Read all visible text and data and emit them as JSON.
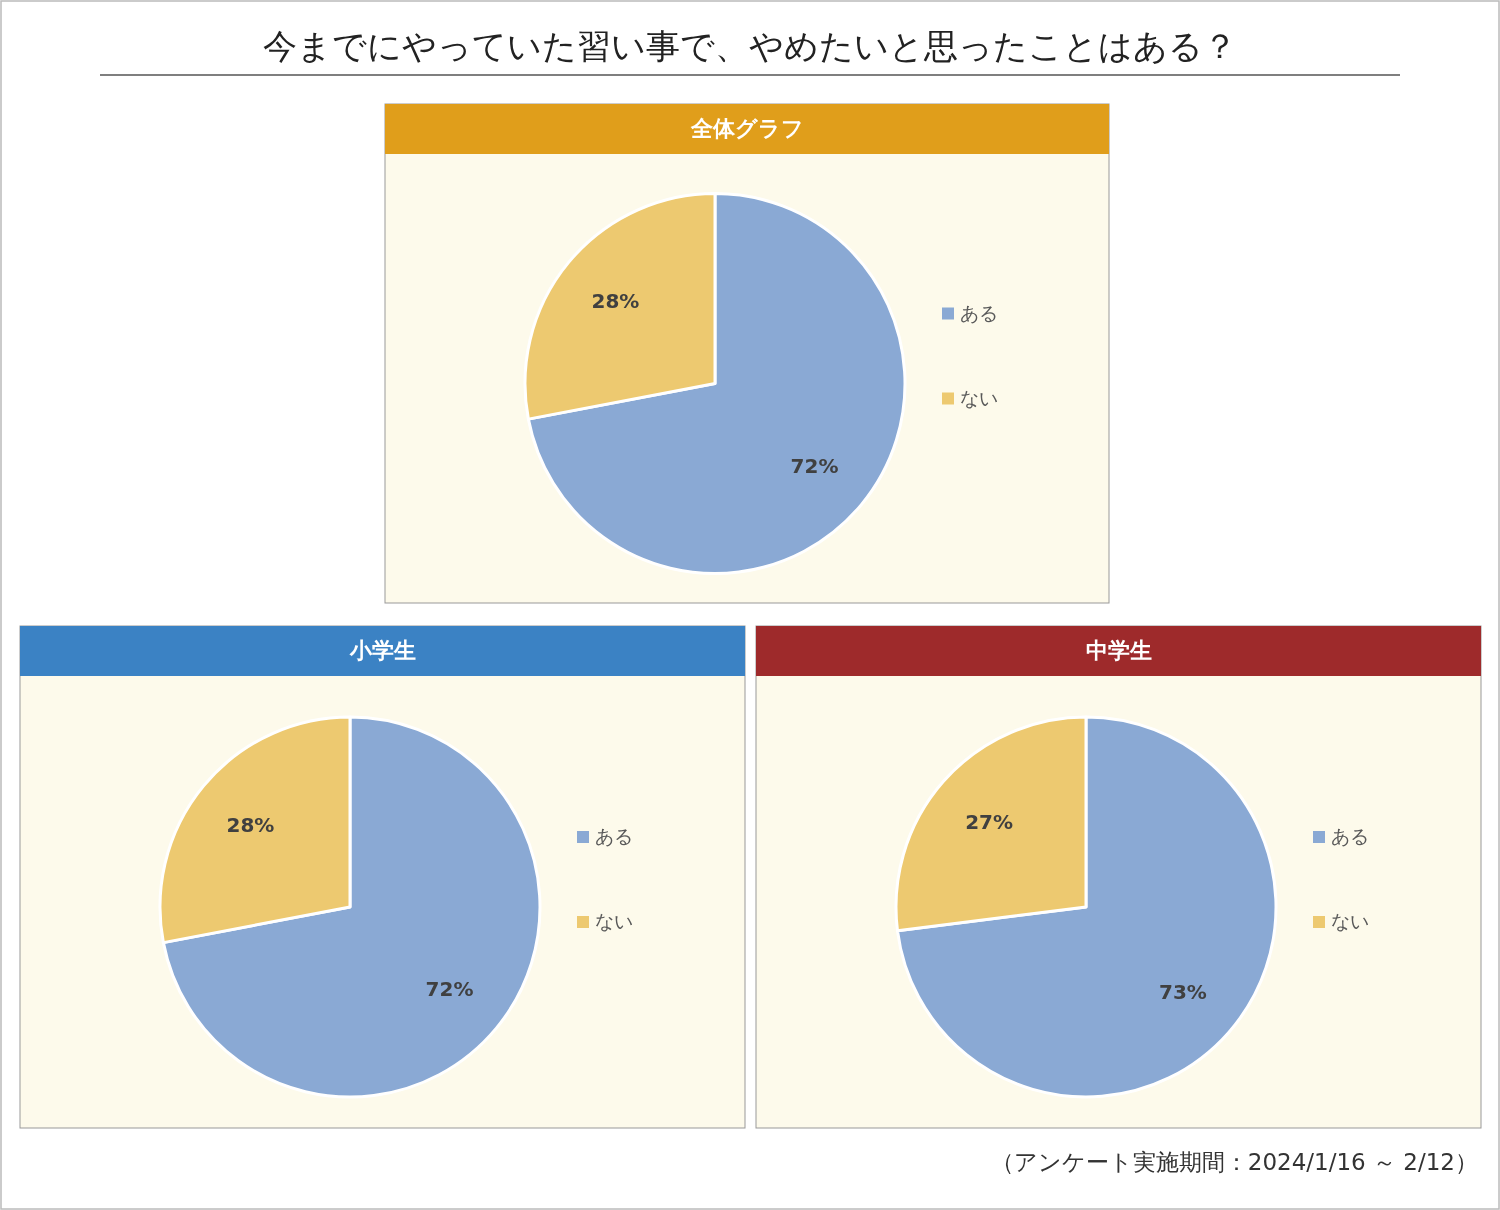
{
  "chart_data": [
    {
      "type": "other",
      "title": "今までにやっていた習い事で、やめたいと思ったことはある？",
      "annotations": [
        "（アンケート実施期間：2024/1/16 ～ 2/12）"
      ]
    },
    {
      "type": "pie",
      "title": "全体グラフ",
      "categories": [
        "ある",
        "ない"
      ],
      "values": [
        72,
        28
      ],
      "colors": [
        "#8aa9d4",
        "#edc970"
      ],
      "value_labels": [
        "72%",
        "28%"
      ],
      "legend": "right"
    },
    {
      "type": "pie",
      "title": "小学生",
      "categories": [
        "ある",
        "ない"
      ],
      "values": [
        72,
        28
      ],
      "colors": [
        "#8aa9d4",
        "#edc970"
      ],
      "value_labels": [
        "72%",
        "28%"
      ],
      "legend": "right"
    },
    {
      "type": "pie",
      "title": "中学生",
      "categories": [
        "ある",
        "ない"
      ],
      "values": [
        73,
        27
      ],
      "colors": [
        "#8aa9d4",
        "#edc970"
      ],
      "value_labels": [
        "73%",
        "27%"
      ],
      "legend": "right"
    }
  ]
}
